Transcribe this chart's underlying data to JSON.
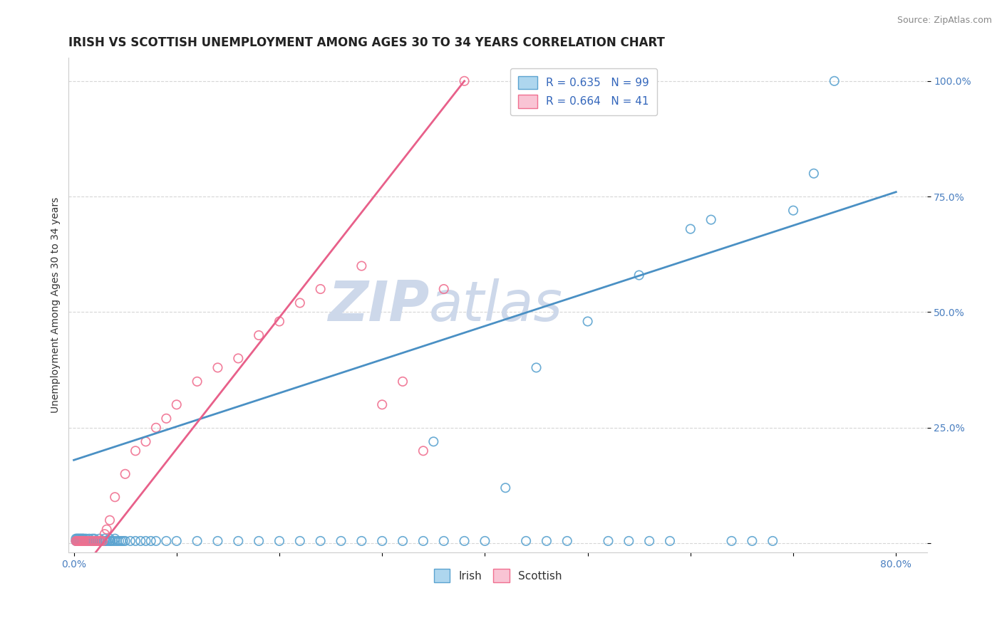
{
  "title": "IRISH VS SCOTTISH UNEMPLOYMENT AMONG AGES 30 TO 34 YEARS CORRELATION CHART",
  "source_text": "Source: ZipAtlas.com",
  "ylabel": "Unemployment Among Ages 30 to 34 years",
  "xlim": [
    -0.005,
    0.83
  ],
  "ylim": [
    -0.02,
    1.05
  ],
  "xticks": [
    0.0,
    0.8
  ],
  "xtick_labels": [
    "0.0%",
    "80.0%"
  ],
  "yticks": [
    0.25,
    0.5,
    0.75,
    1.0
  ],
  "ytick_labels": [
    "25.0%",
    "50.0%",
    "75.0%",
    "100.0%"
  ],
  "irish_R": 0.635,
  "irish_N": 99,
  "scottish_R": 0.664,
  "scottish_N": 41,
  "irish_color": "#AED6EE",
  "scottish_color": "#F9C4D4",
  "irish_edge_color": "#5BA3D0",
  "scottish_edge_color": "#F07090",
  "irish_line_color": "#4A90C4",
  "scottish_line_color": "#E8608A",
  "watermark_color": "#CDD8EA",
  "title_fontsize": 12,
  "axis_label_fontsize": 10,
  "tick_fontsize": 10,
  "legend_fontsize": 11,
  "irish_trend": [
    0.0,
    0.8,
    0.18,
    0.76
  ],
  "scottish_trend": [
    0.0,
    0.38,
    -0.08,
    1.0
  ],
  "irish_x": [
    0.002,
    0.003,
    0.004,
    0.005,
    0.006,
    0.007,
    0.008,
    0.009,
    0.01,
    0.011,
    0.012,
    0.013,
    0.014,
    0.015,
    0.016,
    0.017,
    0.018,
    0.019,
    0.02,
    0.021,
    0.022,
    0.023,
    0.025,
    0.026,
    0.027,
    0.028,
    0.03,
    0.031,
    0.033,
    0.035,
    0.036,
    0.038,
    0.04,
    0.042,
    0.044,
    0.046,
    0.048,
    0.05,
    0.055,
    0.06,
    0.065,
    0.07,
    0.075,
    0.08,
    0.09,
    0.1,
    0.12,
    0.14,
    0.16,
    0.18,
    0.2,
    0.22,
    0.24,
    0.26,
    0.28,
    0.3,
    0.32,
    0.34,
    0.36,
    0.38,
    0.4,
    0.42,
    0.44,
    0.46,
    0.48,
    0.5,
    0.52,
    0.54,
    0.56,
    0.58,
    0.6,
    0.62,
    0.64,
    0.66,
    0.68,
    0.7,
    0.72,
    0.74,
    0.002,
    0.003,
    0.004,
    0.005,
    0.006,
    0.007,
    0.008,
    0.009,
    0.01,
    0.012,
    0.015,
    0.018,
    0.02,
    0.025,
    0.03,
    0.035,
    0.04,
    0.35,
    0.45,
    0.55
  ],
  "irish_y": [
    0.005,
    0.005,
    0.005,
    0.005,
    0.005,
    0.005,
    0.005,
    0.005,
    0.005,
    0.005,
    0.005,
    0.005,
    0.005,
    0.005,
    0.005,
    0.005,
    0.005,
    0.005,
    0.005,
    0.005,
    0.005,
    0.005,
    0.005,
    0.005,
    0.005,
    0.005,
    0.005,
    0.005,
    0.005,
    0.005,
    0.005,
    0.005,
    0.005,
    0.005,
    0.005,
    0.005,
    0.005,
    0.005,
    0.005,
    0.005,
    0.005,
    0.005,
    0.005,
    0.005,
    0.005,
    0.005,
    0.005,
    0.005,
    0.005,
    0.005,
    0.005,
    0.005,
    0.005,
    0.005,
    0.005,
    0.005,
    0.005,
    0.005,
    0.005,
    0.005,
    0.005,
    0.12,
    0.005,
    0.005,
    0.005,
    0.48,
    0.005,
    0.005,
    0.005,
    0.005,
    0.68,
    0.7,
    0.005,
    0.005,
    0.005,
    0.72,
    0.8,
    1.0,
    0.01,
    0.01,
    0.01,
    0.01,
    0.01,
    0.01,
    0.01,
    0.01,
    0.01,
    0.01,
    0.01,
    0.01,
    0.01,
    0.01,
    0.01,
    0.01,
    0.01,
    0.22,
    0.38,
    0.58
  ],
  "scottish_x": [
    0.002,
    0.003,
    0.004,
    0.005,
    0.006,
    0.007,
    0.008,
    0.009,
    0.01,
    0.012,
    0.014,
    0.016,
    0.018,
    0.02,
    0.022,
    0.024,
    0.026,
    0.028,
    0.03,
    0.032,
    0.035,
    0.04,
    0.05,
    0.06,
    0.07,
    0.08,
    0.09,
    0.1,
    0.12,
    0.14,
    0.16,
    0.18,
    0.2,
    0.22,
    0.24,
    0.28,
    0.3,
    0.32,
    0.34,
    0.36,
    0.38
  ],
  "scottish_y": [
    0.005,
    0.005,
    0.005,
    0.005,
    0.005,
    0.005,
    0.005,
    0.005,
    0.005,
    0.005,
    0.005,
    0.005,
    0.005,
    0.005,
    0.005,
    0.005,
    0.005,
    0.005,
    0.02,
    0.03,
    0.05,
    0.1,
    0.15,
    0.2,
    0.22,
    0.25,
    0.27,
    0.3,
    0.35,
    0.38,
    0.4,
    0.45,
    0.48,
    0.52,
    0.55,
    0.6,
    0.3,
    0.35,
    0.2,
    0.55,
    1.0
  ]
}
